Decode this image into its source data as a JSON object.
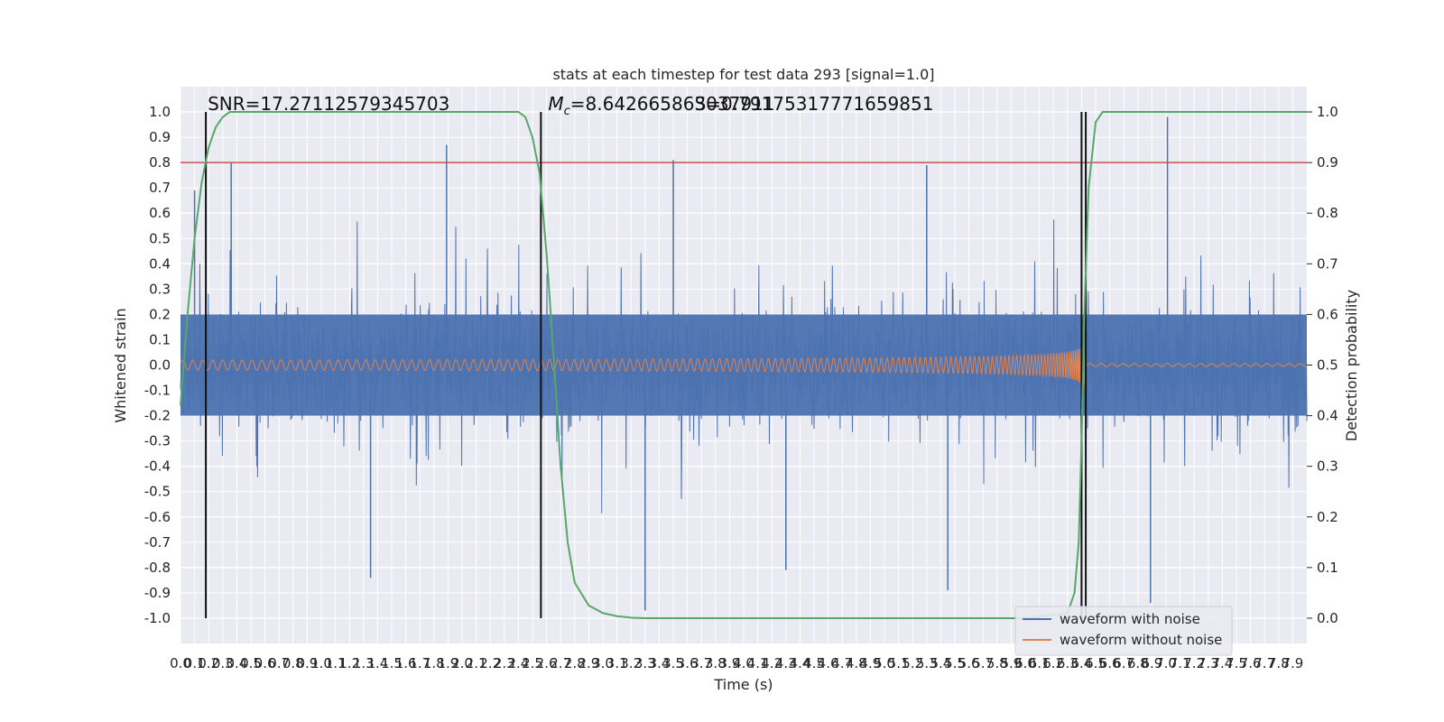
{
  "chart_data": {
    "type": "line",
    "title": "stats at each timestep for test data 293 [signal=1.0]",
    "xlabel": "Time (s)",
    "ylabel": "Whitened strain",
    "y2label": "Detection probability",
    "xlim": [
      0.0,
      8.0
    ],
    "ylim": [
      -1.1,
      1.1
    ],
    "y2lim": [
      -0.05,
      1.05
    ],
    "x_ticks": [
      0.0,
      0.1,
      0.2,
      0.3,
      0.4,
      0.5,
      0.6,
      0.7,
      0.8,
      0.9,
      1.0,
      1.1,
      1.2,
      1.3,
      1.4,
      1.5,
      1.6,
      1.7,
      1.8,
      1.9,
      2.0,
      2.1,
      2.2,
      2.3,
      2.4,
      2.5,
      2.6,
      2.7,
      2.8,
      2.9,
      3.0,
      3.1,
      3.2,
      3.3,
      3.4,
      3.5,
      3.6,
      3.7,
      3.8,
      3.9,
      4.0,
      4.1,
      4.2,
      4.3,
      4.4,
      4.5,
      4.6,
      4.7,
      4.8,
      4.9,
      5.0,
      5.1,
      5.2,
      5.3,
      5.4,
      5.5,
      5.6,
      5.7,
      5.8,
      5.9,
      6.0,
      6.1,
      6.2,
      6.3,
      6.4,
      6.5,
      6.6,
      6.7,
      6.8,
      6.9,
      7.0,
      7.1,
      7.2,
      7.3,
      7.4,
      7.5,
      7.6,
      7.7,
      7.8,
      7.9
    ],
    "y_ticks": [
      -1.0,
      -0.9,
      -0.8,
      -0.7,
      -0.6,
      -0.5,
      -0.4,
      -0.3,
      -0.2,
      -0.1,
      0.0,
      0.1,
      0.2,
      0.3,
      0.4,
      0.5,
      0.6,
      0.7,
      0.8,
      0.9,
      1.0
    ],
    "y2_ticks": [
      0.0,
      0.1,
      0.2,
      0.3,
      0.4,
      0.5,
      0.6,
      0.7,
      0.8,
      0.9,
      1.0
    ],
    "grid": true,
    "legend_position": "lower-right",
    "series": [
      {
        "name": "waveform with noise",
        "color": "#4c72b0",
        "axis": "left",
        "noise_envelope": 0.4,
        "peaks": [
          {
            "x": 0.1,
            "y": 0.69
          },
          {
            "x": 0.36,
            "y": 0.8
          },
          {
            "x": 1.89,
            "y": 0.87
          },
          {
            "x": 3.5,
            "y": 0.81
          },
          {
            "x": 5.3,
            "y": 0.79
          },
          {
            "x": 7.01,
            "y": 0.98
          },
          {
            "x": 3.3,
            "y": -0.97
          },
          {
            "x": 1.35,
            "y": -0.84
          },
          {
            "x": 5.45,
            "y": -0.89
          },
          {
            "x": 6.89,
            "y": -0.94
          },
          {
            "x": 4.3,
            "y": -0.81
          }
        ]
      },
      {
        "name": "waveform without noise",
        "color": "#dd8452",
        "axis": "left",
        "chirp_start": 0.0,
        "chirp_end": 6.43,
        "amplitude_start": 0.02,
        "amplitude_peak": 0.6
      },
      {
        "name": "detection probability",
        "color": "#55a868",
        "axis": "right",
        "x": [
          0.0,
          0.05,
          0.1,
          0.15,
          0.2,
          0.25,
          0.3,
          0.35,
          0.4,
          0.5,
          0.7,
          1.0,
          2.0,
          2.3,
          2.4,
          2.45,
          2.5,
          2.55,
          2.6,
          2.65,
          2.7,
          2.75,
          2.8,
          2.9,
          3.0,
          3.1,
          3.2,
          3.3,
          3.5,
          4.0,
          5.0,
          6.0,
          6.3,
          6.35,
          6.38,
          6.4,
          6.42,
          6.45,
          6.5,
          6.55,
          6.6,
          6.8,
          7.0,
          8.0
        ],
        "values": [
          0.42,
          0.6,
          0.75,
          0.86,
          0.93,
          0.97,
          0.99,
          1.0,
          1.0,
          1.0,
          1.0,
          1.0,
          1.0,
          1.0,
          1.0,
          0.99,
          0.95,
          0.88,
          0.72,
          0.52,
          0.3,
          0.15,
          0.07,
          0.025,
          0.01,
          0.004,
          0.001,
          0.0,
          0.0,
          0.0,
          0.0,
          0.0,
          0.01,
          0.05,
          0.15,
          0.35,
          0.6,
          0.85,
          0.98,
          1.0,
          1.0,
          1.0,
          1.0,
          1.0
        ]
      }
    ],
    "threshold": {
      "y": 0.9,
      "axis": "right",
      "color": "#c44e52"
    },
    "vlines": [
      0.18,
      2.56,
      6.4,
      6.43
    ],
    "annotations": [
      {
        "text": "SNR=17.27112579345703",
        "x": 0.18
      },
      {
        "text": "=8.642665863037911",
        "prefix": "M",
        "subscript": "c",
        "x": 2.56
      },
      {
        "text": "S=0.79175317771659851",
        "x": 3.6
      }
    ]
  }
}
